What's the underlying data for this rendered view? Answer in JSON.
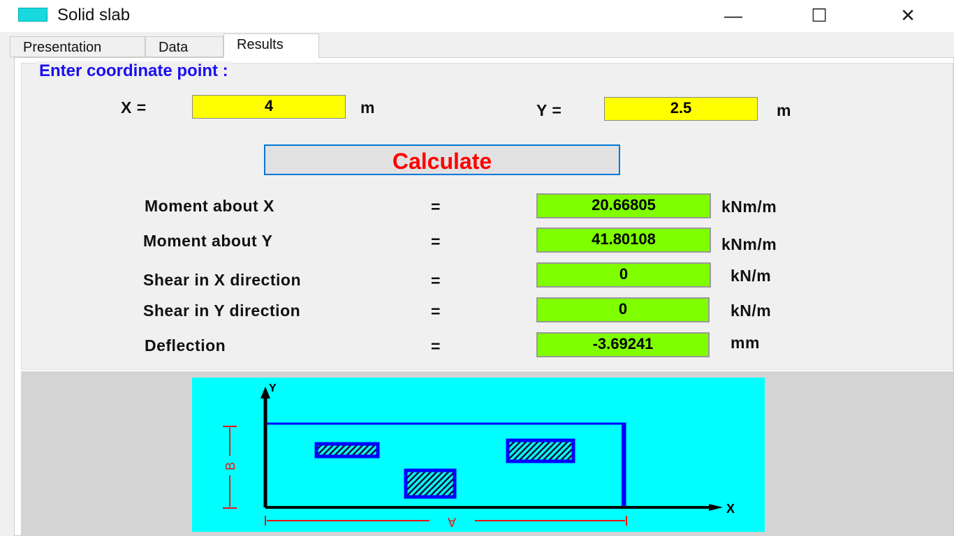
{
  "window": {
    "title": "Solid slab",
    "minimize": "—",
    "maximize": "☐",
    "close": "✕"
  },
  "tabs": [
    {
      "label": "Presentation"
    },
    {
      "label": "Data"
    },
    {
      "label": "Results",
      "active": true
    }
  ],
  "group_title": "Enter coordinate point :",
  "inputs": {
    "x_label": "X  =",
    "x_value": "4",
    "x_unit": "m",
    "y_label": "Y  =",
    "y_value": "2.5",
    "y_unit": "m"
  },
  "calculate_label": "Calculate",
  "results": [
    {
      "label": "Moment about X",
      "eq": "=",
      "value": "20.66805",
      "unit": "kNm/m"
    },
    {
      "label": "Moment about Y",
      "eq": "=",
      "value": "41.80108",
      "unit": "kNm/m"
    },
    {
      "label": "Shear in X direction",
      "eq": "=",
      "value": "0",
      "unit": "kN/m"
    },
    {
      "label": "Shear in Y direction",
      "eq": "=",
      "value": "0",
      "unit": "kN/m"
    },
    {
      "label": "Deflection",
      "eq": "=",
      "value": "-3.69241",
      "unit": "mm"
    }
  ],
  "diagram": {
    "x_axis": "X",
    "y_axis": "Y",
    "dim_a": "A",
    "dim_b": "B",
    "background": "#00ffff",
    "slab_color": "#0000ff"
  }
}
